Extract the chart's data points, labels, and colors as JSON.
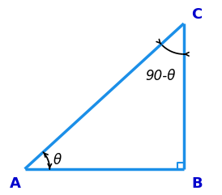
{
  "A": [
    0.05,
    0.12
  ],
  "B": [
    0.88,
    0.12
  ],
  "C": [
    0.88,
    0.88
  ],
  "line_color": "#1B8FE8",
  "line_width": 2.5,
  "label_A": "A",
  "label_B": "B",
  "label_C": "C",
  "label_theta": "θ",
  "label_comp": "90-θ",
  "font_size": 12,
  "label_fontsize": 13,
  "background_color": "#ffffff",
  "text_color": "#000000",
  "figsize": [
    2.74,
    2.41
  ],
  "dpi": 100
}
